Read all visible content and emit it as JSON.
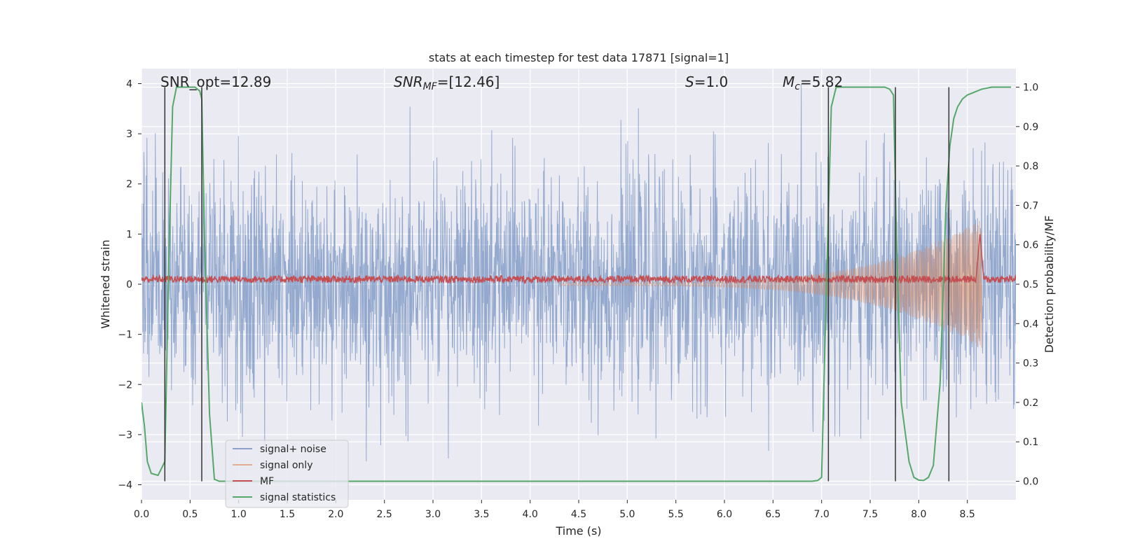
{
  "chart_data": {
    "type": "line",
    "title": "stats at each timestep for test data 17871 [signal=1]",
    "xlabel": "Time (s)",
    "ylabel": "Whitened strain",
    "y2label": "Detection probability/MF",
    "xlim": [
      0.0,
      9.0
    ],
    "ylim": [
      -4.3,
      4.3
    ],
    "y2lim": [
      -0.047,
      1.047
    ],
    "x_ticks": [
      "0.0",
      "0.5",
      "1.0",
      "1.5",
      "2.0",
      "2.5",
      "3.0",
      "3.5",
      "4.0",
      "4.5",
      "5.0",
      "5.5",
      "6.0",
      "6.5",
      "7.0",
      "7.5",
      "8.0",
      "8.5"
    ],
    "y_ticks": [
      "−4",
      "−3",
      "−2",
      "−1",
      "0",
      "1",
      "2",
      "3",
      "4"
    ],
    "y2_ticks": [
      "0.0",
      "0.1",
      "0.2",
      "0.3",
      "0.4",
      "0.5",
      "0.6",
      "0.7",
      "0.8",
      "0.9",
      "1.0"
    ],
    "grid": true,
    "legend_position": "bottom-left",
    "annotations": {
      "snr_opt": "SNR_opt=12.89",
      "snr_mf_base": "SNR",
      "snr_mf_sub": "MF",
      "snr_mf_tail": "=[12.46]",
      "s_base": "S",
      "s_tail": "=1.0",
      "mc_base": "M",
      "mc_sub": "c",
      "mc_tail": "=5.82"
    },
    "series": [
      {
        "name": "signal+ noise",
        "color": "#4c72b0",
        "description_values": "whitened noisy strain, amplitude roughly within [-4, 4], spanning 0 to 9 s",
        "envelope": {
          "typical_upper": 2.2,
          "typical_lower": -2.2,
          "max": 4.0,
          "min": -4.0
        }
      },
      {
        "name": "signal only",
        "color": "#dd8452",
        "chirp": {
          "start": 4.3,
          "end": 8.65,
          "amp_start": 0.03,
          "amp_end": 1.3
        }
      },
      {
        "name": "MF",
        "color": "#c44e52",
        "baseline": 0.1,
        "noise_amp": 0.07,
        "peak": {
          "x": 8.63,
          "y": 1.0
        }
      },
      {
        "name": "signal statistics",
        "color": "#55a868",
        "axis": "right",
        "x": [
          0.0,
          0.03,
          0.06,
          0.1,
          0.17,
          0.24,
          0.28,
          0.32,
          0.36,
          0.45,
          0.55,
          0.6,
          0.62,
          0.65,
          0.7,
          0.75,
          0.8,
          1.0,
          2.0,
          3.0,
          4.0,
          5.0,
          6.0,
          6.5,
          6.9,
          6.96,
          7.0,
          7.05,
          7.1,
          7.15,
          7.3,
          7.5,
          7.65,
          7.7,
          7.74,
          7.77,
          7.82,
          7.9,
          7.95,
          8.0,
          8.05,
          8.1,
          8.15,
          8.22,
          8.28,
          8.32,
          8.36,
          8.4,
          8.45,
          8.5,
          8.55,
          8.65,
          8.75,
          8.85,
          8.95
        ],
        "y": [
          0.2,
          0.14,
          0.05,
          0.02,
          0.015,
          0.05,
          0.55,
          0.95,
          1.0,
          1.0,
          1.0,
          0.99,
          0.97,
          0.6,
          0.17,
          0.005,
          0.0,
          0.0,
          0.0,
          0.0,
          0.0,
          0.0,
          0.0,
          0.0,
          0.0,
          0.002,
          0.01,
          0.5,
          0.95,
          1.0,
          1.0,
          1.0,
          1.0,
          0.995,
          0.98,
          0.62,
          0.2,
          0.05,
          0.01,
          0.003,
          0.002,
          0.01,
          0.04,
          0.25,
          0.7,
          0.85,
          0.92,
          0.95,
          0.97,
          0.98,
          0.985,
          0.995,
          1.0,
          1.0,
          1.0
        ]
      }
    ],
    "vertical_lines": {
      "color": "#333333",
      "x": [
        0.24,
        0.62,
        7.07,
        7.76,
        8.31
      ]
    }
  }
}
